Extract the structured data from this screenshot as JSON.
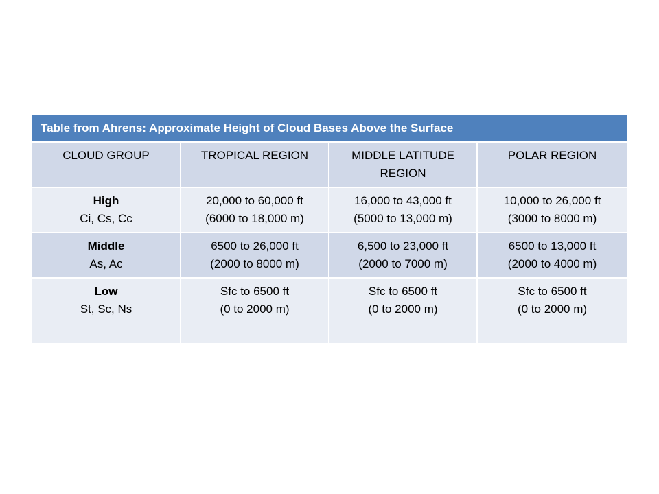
{
  "table": {
    "title": "Table from Ahrens: Approximate Height of Cloud Bases Above the Surface",
    "headers": [
      "CLOUD GROUP",
      "TROPICAL REGION",
      "MIDDLE LATITUDE REGION",
      "POLAR REGION"
    ],
    "rows": [
      {
        "group": "High",
        "types": "Ci, Cs, Cc",
        "tropical": [
          "20,000 to 60,000 ft",
          "(6000 to 18,000 m)"
        ],
        "middle": [
          "16,000 to 43,000 ft",
          "(5000 to 13,000 m)"
        ],
        "polar": [
          "10,000 to 26,000 ft",
          "(3000 to 8000 m)"
        ]
      },
      {
        "group": "Middle",
        "types": "As, Ac",
        "tropical": [
          "6500 to 26,000 ft",
          "(2000 to 8000 m)"
        ],
        "middle": [
          "6,500 to 23,000 ft",
          "(2000 to 7000 m)"
        ],
        "polar": [
          "6500 to 13,000 ft",
          "(2000 to 4000 m)"
        ]
      },
      {
        "group": "Low",
        "types": "St, Sc, Ns",
        "tropical": [
          "Sfc to 6500 ft",
          "(0 to 2000 m)"
        ],
        "middle": [
          "Sfc to 6500 ft",
          "(0 to 2000 m)"
        ],
        "polar": [
          "Sfc to 6500 ft",
          "(0 to 2000 m)"
        ]
      }
    ],
    "colors": {
      "title_bg": "#4f81bd",
      "band_dark": "#d0d8e8",
      "band_light": "#e9edf4"
    }
  }
}
